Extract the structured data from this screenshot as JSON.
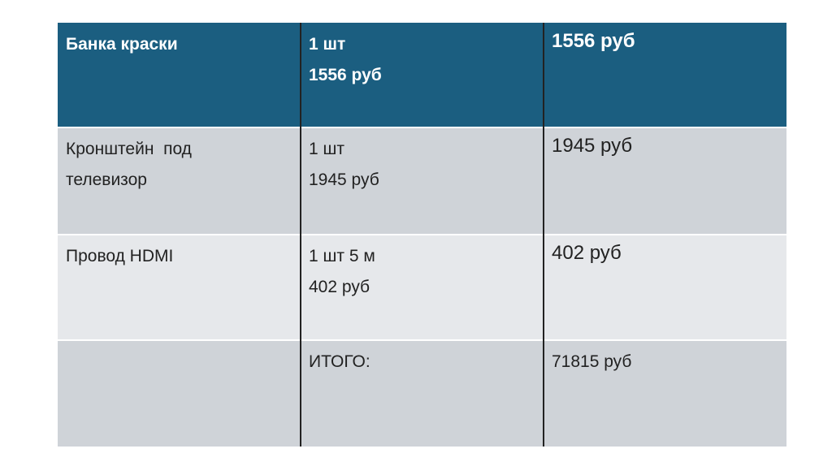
{
  "table": {
    "rows": [
      [
        [
          "Банка краски"
        ],
        [
          "1 шт",
          "1556 руб"
        ],
        [
          "1556 руб"
        ]
      ],
      [
        [
          "Кронштейн  под",
          "телевизор"
        ],
        [
          "1 шт",
          "1945 руб"
        ],
        [
          "1945 руб"
        ]
      ],
      [
        [
          "Провод HDMI"
        ],
        [
          "1 шт 5 м",
          "402 руб"
        ],
        [
          "402 руб"
        ]
      ],
      [
        [],
        [
          "ИТОГО:"
        ],
        [
          "71815 руб"
        ]
      ]
    ]
  }
}
